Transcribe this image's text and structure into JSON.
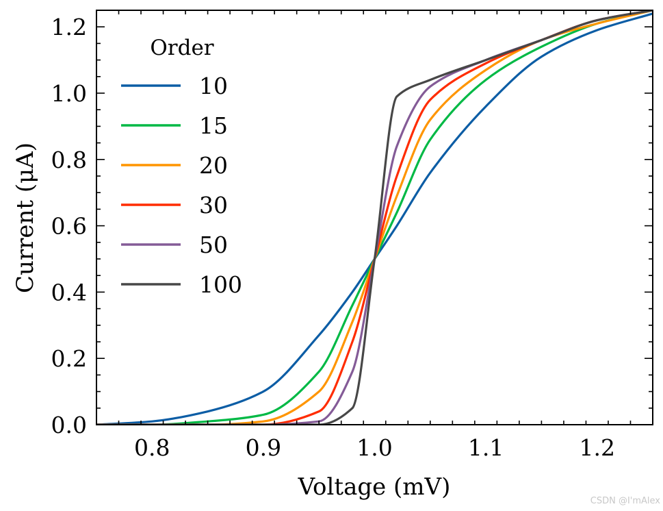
{
  "chart_data": {
    "type": "line",
    "title": "",
    "xlabel": "Voltage (mV)",
    "ylabel": "Current (μA)",
    "xlim": [
      0.75,
      1.25
    ],
    "ylim": [
      0.0,
      1.25
    ],
    "xticks": [
      0.8,
      0.9,
      1.0,
      1.1,
      1.2
    ],
    "xtick_labels": [
      "0.8",
      "0.9",
      "1.0",
      "1.1",
      "1.2"
    ],
    "yticks": [
      0.0,
      0.2,
      0.4,
      0.6,
      0.8,
      1.0,
      1.2
    ],
    "ytick_labels": [
      "0.0",
      "0.2",
      "0.4",
      "0.6",
      "0.8",
      "1.0",
      "1.2"
    ],
    "grid": false,
    "legend": {
      "title": "Order",
      "position": "top-left"
    },
    "x": [
      0.75,
      0.8,
      0.85,
      0.9,
      0.95,
      0.98,
      1.0,
      1.02,
      1.05,
      1.1,
      1.15,
      1.2,
      1.25
    ],
    "series": [
      {
        "name": "10",
        "color": "#0C5DA5",
        "values": [
          0.0,
          0.01,
          0.04,
          0.1,
          0.27,
          0.4,
          0.5,
          0.6,
          0.76,
          0.96,
          1.11,
          1.19,
          1.24
        ]
      },
      {
        "name": "15",
        "color": "#00B945",
        "values": [
          0.0,
          0.0,
          0.01,
          0.03,
          0.16,
          0.36,
          0.5,
          0.64,
          0.86,
          1.04,
          1.14,
          1.21,
          1.25
        ]
      },
      {
        "name": "20",
        "color": "#FF9500",
        "values": [
          0.0,
          0.0,
          0.0,
          0.01,
          0.1,
          0.31,
          0.5,
          0.69,
          0.92,
          1.07,
          1.16,
          1.21,
          1.25
        ]
      },
      {
        "name": "30",
        "color": "#FF2C00",
        "values": [
          0.0,
          0.0,
          0.0,
          0.0,
          0.04,
          0.25,
          0.5,
          0.75,
          0.98,
          1.09,
          1.16,
          1.22,
          1.25
        ]
      },
      {
        "name": "50",
        "color": "#845B97",
        "values": [
          0.0,
          0.0,
          0.0,
          0.0,
          0.01,
          0.16,
          0.5,
          0.84,
          1.02,
          1.1,
          1.16,
          1.22,
          1.25
        ]
      },
      {
        "name": "100",
        "color": "#474747",
        "values": [
          0.0,
          0.0,
          0.0,
          0.0,
          0.0,
          0.05,
          0.5,
          0.99,
          1.04,
          1.1,
          1.16,
          1.22,
          1.25
        ]
      }
    ]
  },
  "watermark": "CSDN @I'mAlex"
}
